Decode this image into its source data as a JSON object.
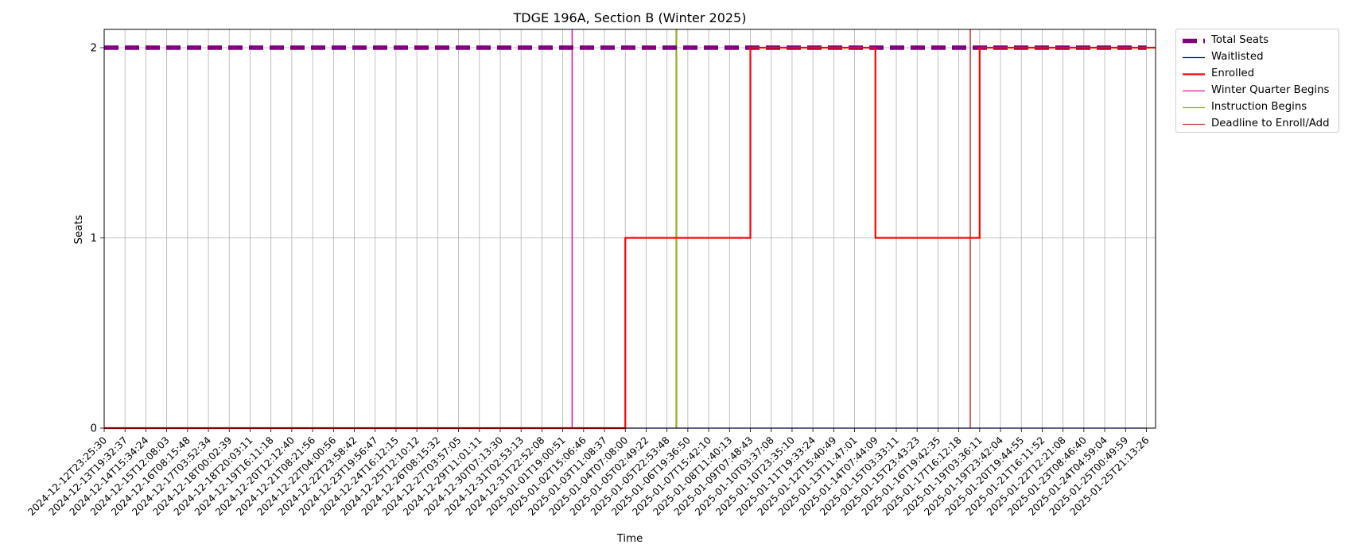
{
  "chart_data": {
    "type": "line",
    "title": "TDGE 196A, Section B (Winter 2025)",
    "xlabel": "Time",
    "ylabel": "Seats",
    "ylim": [
      0,
      2.1
    ],
    "yticks": [
      0,
      1,
      2
    ],
    "grid": true,
    "legend_position": "outside top-right",
    "x": [
      "2024-12-12T23:25:30",
      "2024-12-13T19:32:37",
      "2024-12-14T15:34:24",
      "2024-12-15T12:08:03",
      "2024-12-16T08:15:48",
      "2024-12-17T03:52:34",
      "2024-12-18T00:02:39",
      "2024-12-18T20:03:11",
      "2024-12-19T16:11:18",
      "2024-12-20T12:12:40",
      "2024-12-21T08:21:56",
      "2024-12-22T04:00:56",
      "2024-12-22T23:58:42",
      "2024-12-23T19:56:47",
      "2024-12-24T16:12:15",
      "2024-12-25T12:10:12",
      "2024-12-26T08:15:32",
      "2024-12-27T03:57:05",
      "2024-12-29T11:01:11",
      "2024-12-30T07:13:30",
      "2024-12-31T02:53:13",
      "2024-12-31T22:52:08",
      "2025-01-01T19:00:51",
      "2025-01-02T15:06:46",
      "2025-01-03T11:08:37",
      "2025-01-04T07:08:00",
      "2025-01-05T02:49:22",
      "2025-01-05T22:53:48",
      "2025-01-06T19:36:50",
      "2025-01-07T15:42:10",
      "2025-01-08T11:40:13",
      "2025-01-09T07:48:43",
      "2025-01-10T03:37:08",
      "2025-01-10T23:35:10",
      "2025-01-11T19:33:24",
      "2025-01-12T15:40:49",
      "2025-01-13T11:47:01",
      "2025-01-14T07:44:09",
      "2025-01-15T03:33:11",
      "2025-01-15T23:43:23",
      "2025-01-16T19:42:35",
      "2025-01-17T16:12:18",
      "2025-01-19T03:36:11",
      "2025-01-19T23:42:04",
      "2025-01-20T19:44:55",
      "2025-01-21T16:11:52",
      "2025-01-22T12:21:08",
      "2025-01-23T08:46:40",
      "2025-01-24T04:59:04",
      "2025-01-25T00:49:59",
      "2025-01-25T21:13:26"
    ],
    "series": [
      {
        "name": "Total Seats",
        "color": "#800080",
        "style": "dashed",
        "values": [
          2,
          2,
          2,
          2,
          2,
          2,
          2,
          2,
          2,
          2,
          2,
          2,
          2,
          2,
          2,
          2,
          2,
          2,
          2,
          2,
          2,
          2,
          2,
          2,
          2,
          2,
          2,
          2,
          2,
          2,
          2,
          2,
          2,
          2,
          2,
          2,
          2,
          2,
          2,
          2,
          2,
          2,
          2,
          2,
          2,
          2,
          2,
          2,
          2,
          2,
          2
        ]
      },
      {
        "name": "Waitlisted",
        "color": "#0000ff",
        "style": "solid",
        "values": [
          0,
          0,
          0,
          0,
          0,
          0,
          0,
          0,
          0,
          0,
          0,
          0,
          0,
          0,
          0,
          0,
          0,
          0,
          0,
          0,
          0,
          0,
          0,
          0,
          0,
          0,
          0,
          0,
          0,
          0,
          0,
          0,
          0,
          0,
          0,
          0,
          0,
          0,
          0,
          0,
          0,
          0,
          0,
          0,
          0,
          0,
          0,
          0,
          0,
          0,
          0
        ]
      },
      {
        "name": "Enrolled",
        "color": "#ff0000",
        "style": "steps",
        "values": [
          0,
          0,
          0,
          0,
          0,
          0,
          0,
          0,
          0,
          0,
          0,
          0,
          0,
          0,
          0,
          0,
          0,
          0,
          0,
          0,
          0,
          0,
          0,
          0,
          0,
          1,
          1,
          1,
          1,
          1,
          1,
          2,
          2,
          2,
          2,
          2,
          2,
          1,
          1,
          1,
          1,
          1,
          2,
          2,
          2,
          2,
          2,
          2,
          2,
          2,
          2
        ]
      }
    ],
    "events": [
      {
        "name": "Winter Quarter Begins",
        "color": "#e60ea0",
        "x_index": 22.45
      },
      {
        "name": "Instruction Begins",
        "color": "#8db31c",
        "x_index": 27.45
      },
      {
        "name": "Deadline to Enroll/Add",
        "color": "#c9302c",
        "x_index": 41.55
      }
    ]
  }
}
